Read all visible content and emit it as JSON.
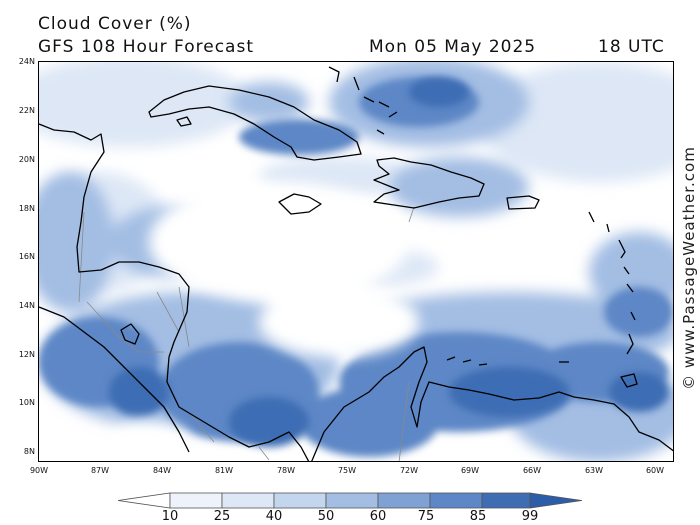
{
  "header": {
    "title": "Cloud Cover (%)",
    "subtitle": "GFS 108 Hour Forecast",
    "date": "Mon 05 May 2025",
    "time": "18 UTC"
  },
  "watermark": "© www.PassageWeather.com",
  "axes": {
    "lat_labels": [
      "24N",
      "22N",
      "20N",
      "18N",
      "16N",
      "14N",
      "12N",
      "10N",
      "8N"
    ],
    "lon_labels": [
      "90W",
      "87W",
      "84W",
      "81W",
      "78W",
      "75W",
      "72W",
      "69W",
      "66W",
      "63W",
      "60W"
    ]
  },
  "colorbar": {
    "labels": [
      "10",
      "25",
      "40",
      "50",
      "60",
      "75",
      "85",
      "99"
    ],
    "colors": [
      "#ffffff",
      "#eef3fb",
      "#dde7f6",
      "#c4d5ee",
      "#a3bde3",
      "#7fa1d4",
      "#5d87c6",
      "#3e6db4",
      "#2d5da8"
    ]
  },
  "colors": {
    "clear": "#ffffff",
    "deep_cloud": "#3e6db4"
  }
}
